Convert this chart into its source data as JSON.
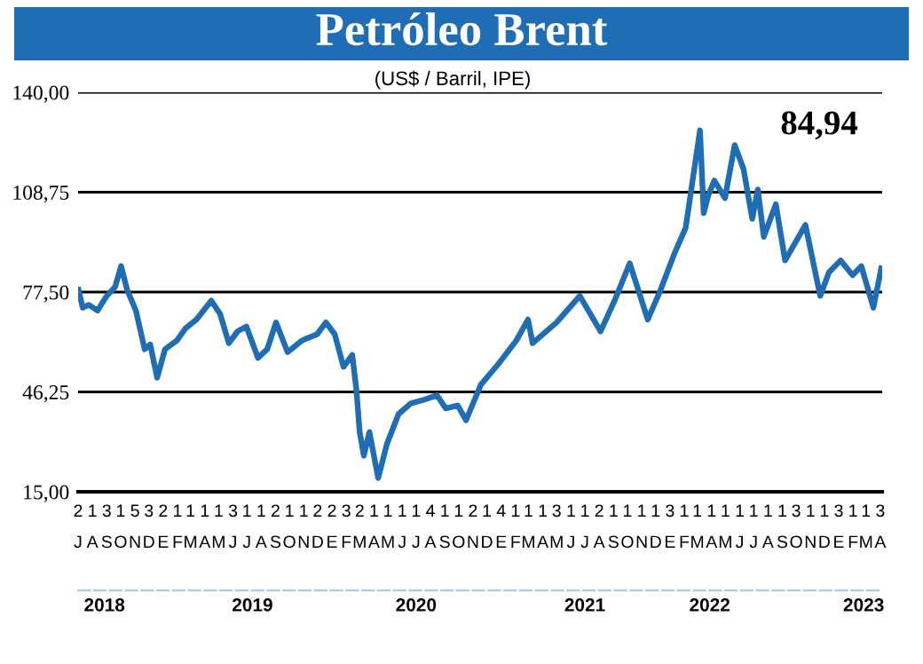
{
  "chart_data": {
    "type": "line",
    "title": "Petróleo Brent",
    "subtitle": "(US$ / Barril, IPE)",
    "annotations": [
      "84,94"
    ],
    "x": [
      "2018-07-02",
      "2018-07-11",
      "2018-07-24",
      "2018-08-12",
      "2018-09-01",
      "2018-09-19",
      "2018-10-02",
      "2018-10-15",
      "2018-11-03",
      "2018-11-22",
      "2018-12-04",
      "2018-12-19",
      "2019-01-05",
      "2019-01-31",
      "2019-02-18",
      "2019-03-14",
      "2019-04-15",
      "2019-05-04",
      "2019-05-23",
      "2019-06-11",
      "2019-06-30",
      "2019-07-25",
      "2019-08-14",
      "2019-09-02",
      "2019-09-27",
      "2019-10-29",
      "2019-11-30",
      "2019-12-19",
      "2020-01-07",
      "2020-01-26",
      "2020-02-14",
      "2020-02-23",
      "2020-03-01",
      "2020-03-10",
      "2020-03-22",
      "2020-04-10",
      "2020-04-29",
      "2020-05-24",
      "2020-06-19",
      "2020-07-20",
      "2020-08-15",
      "2020-09-03",
      "2020-09-29",
      "2020-10-17",
      "2020-11-18",
      "2020-12-26",
      "2021-02-03",
      "2021-02-28",
      "2021-03-10",
      "2021-05-01",
      "2021-06-20",
      "2021-08-04",
      "2021-09-05",
      "2021-10-06",
      "2021-11-14",
      "2021-12-09",
      "2022-01-10",
      "2022-02-04",
      "2022-03-07",
      "2022-03-15",
      "2022-03-25",
      "2022-04-07",
      "2022-04-30",
      "2022-05-21",
      "2022-06-09",
      "2022-06-28",
      "2022-07-10",
      "2022-07-23",
      "2022-08-18",
      "2022-09-07",
      "2022-10-21",
      "2022-11-22",
      "2022-12-11",
      "2023-01-05",
      "2023-01-31",
      "2023-02-19",
      "2023-03-17",
      "2023-04-03"
    ],
    "series": [
      {
        "color": "#1f6db5",
        "values": [
          78.2,
          72.6,
          73.5,
          71.7,
          76.3,
          79.1,
          85.6,
          78.2,
          71.7,
          59.6,
          61.1,
          50.7,
          59.6,
          62.4,
          66.1,
          68.9,
          74.8,
          70.7,
          61.5,
          65.2,
          66.7,
          56.9,
          59.6,
          68.0,
          58.7,
          62.4,
          64.3,
          68.0,
          64.3,
          54.1,
          57.8,
          46.7,
          33.7,
          26.3,
          33.7,
          19.3,
          30.0,
          39.3,
          42.6,
          43.9,
          45.2,
          41.1,
          42.0,
          37.4,
          48.5,
          55.0,
          62.4,
          68.9,
          61.5,
          68.0,
          76.3,
          65.2,
          75.4,
          86.5,
          68.9,
          77.2,
          89.3,
          97.6,
          128.1,
          102.2,
          107.8,
          112.4,
          106.9,
          123.5,
          116.1,
          100.4,
          109.6,
          94.8,
          105.0,
          87.4,
          98.5,
          76.3,
          83.7,
          87.4,
          82.8,
          85.6,
          72.6,
          84.94
        ]
      }
    ],
    "ylim": [
      15,
      140
    ],
    "yticks": [
      {
        "value": 15,
        "label": "15,00"
      },
      {
        "value": 46.25,
        "label": "46,25"
      },
      {
        "value": 77.5,
        "label": "77,50"
      },
      {
        "value": 108.75,
        "label": "108,75"
      },
      {
        "value": 140,
        "label": "140,00"
      }
    ],
    "xlim": [
      "2018-07-01",
      "2023-04-05"
    ],
    "xticks": [
      {
        "value": "2018-07-01",
        "label": "2\nJ"
      },
      {
        "value": "2018-08-01",
        "label": "1\nA"
      },
      {
        "value": "2018-09-01",
        "label": "3\nS"
      },
      {
        "value": "2018-10-01",
        "label": "1\nO"
      },
      {
        "value": "2018-11-01",
        "label": "5\nN"
      },
      {
        "value": "2018-12-01",
        "label": "3\nD"
      },
      {
        "value": "2019-01-01",
        "label": "2\nE"
      },
      {
        "value": "2019-02-01",
        "label": "1\nF"
      },
      {
        "value": "2019-03-01",
        "label": "1\nM"
      },
      {
        "value": "2019-04-01",
        "label": "1\nA"
      },
      {
        "value": "2019-05-01",
        "label": "1\nM"
      },
      {
        "value": "2019-06-01",
        "label": "3\nJ"
      },
      {
        "value": "2019-07-01",
        "label": "1\nJ"
      },
      {
        "value": "2019-08-01",
        "label": "1\nA"
      },
      {
        "value": "2019-09-01",
        "label": "2\nS"
      },
      {
        "value": "2019-10-01",
        "label": "1\nO"
      },
      {
        "value": "2019-11-01",
        "label": "1\nN"
      },
      {
        "value": "2019-12-01",
        "label": "2\nD"
      },
      {
        "value": "2020-01-01",
        "label": "2\nE"
      },
      {
        "value": "2020-02-01",
        "label": "3\nF"
      },
      {
        "value": "2020-03-01",
        "label": "2\nM"
      },
      {
        "value": "2020-04-01",
        "label": "1\nA"
      },
      {
        "value": "2020-05-01",
        "label": "1\nM"
      },
      {
        "value": "2020-06-01",
        "label": "1\nJ"
      },
      {
        "value": "2020-07-01",
        "label": "1\nJ"
      },
      {
        "value": "2020-08-01",
        "label": "4\nA"
      },
      {
        "value": "2020-09-01",
        "label": "1\nS"
      },
      {
        "value": "2020-10-01",
        "label": "1\nO"
      },
      {
        "value": "2020-11-01",
        "label": "2\nN"
      },
      {
        "value": "2020-12-01",
        "label": "1\nD"
      },
      {
        "value": "2021-01-01",
        "label": "4\nE"
      },
      {
        "value": "2021-02-01",
        "label": "1\nF"
      },
      {
        "value": "2021-03-01",
        "label": "1\nM"
      },
      {
        "value": "2021-04-01",
        "label": "1\nA"
      },
      {
        "value": "2021-05-01",
        "label": "3\nM"
      },
      {
        "value": "2021-06-01",
        "label": "1\nJ"
      },
      {
        "value": "2021-07-01",
        "label": "1\nJ"
      },
      {
        "value": "2021-08-01",
        "label": "2\nA"
      },
      {
        "value": "2021-09-01",
        "label": "1\nS"
      },
      {
        "value": "2021-10-01",
        "label": "1\nO"
      },
      {
        "value": "2021-11-01",
        "label": "1\nN"
      },
      {
        "value": "2021-12-01",
        "label": "1\nD"
      },
      {
        "value": "2022-01-01",
        "label": "3\nE"
      },
      {
        "value": "2022-02-01",
        "label": "1\nF"
      },
      {
        "value": "2022-03-01",
        "label": "1\nM"
      },
      {
        "value": "2022-04-01",
        "label": "1\nA"
      },
      {
        "value": "2022-05-01",
        "label": "1\nM"
      },
      {
        "value": "2022-06-01",
        "label": "1\nJ"
      },
      {
        "value": "2022-07-01",
        "label": "1\nJ"
      },
      {
        "value": "2022-08-01",
        "label": "1\nA"
      },
      {
        "value": "2022-09-01",
        "label": "1\nS"
      },
      {
        "value": "2022-10-01",
        "label": "3\nO"
      },
      {
        "value": "2022-11-01",
        "label": "1\nN"
      },
      {
        "value": "2022-12-01",
        "label": "1\nD"
      },
      {
        "value": "2023-01-01",
        "label": "3\nE"
      },
      {
        "value": "2023-02-01",
        "label": "1\nF"
      },
      {
        "value": "2023-03-01",
        "label": "1\nM"
      },
      {
        "value": "2023-04-01",
        "label": "3\nA"
      }
    ],
    "x2lim": [
      "2018-07-01",
      "2023-04-05"
    ],
    "x2ticks": [
      {
        "value": "2018-08-27",
        "label": "2018"
      },
      {
        "value": "2019-07-13",
        "label": "2019"
      },
      {
        "value": "2020-07-01",
        "label": "2020"
      },
      {
        "value": "2021-07-01",
        "label": "2021"
      },
      {
        "value": "2022-03-28",
        "label": "2022"
      },
      {
        "value": "2023-02-24",
        "label": "2023"
      }
    ],
    "grid": "y",
    "legend": false,
    "marker": "none",
    "line_style": "solid"
  }
}
